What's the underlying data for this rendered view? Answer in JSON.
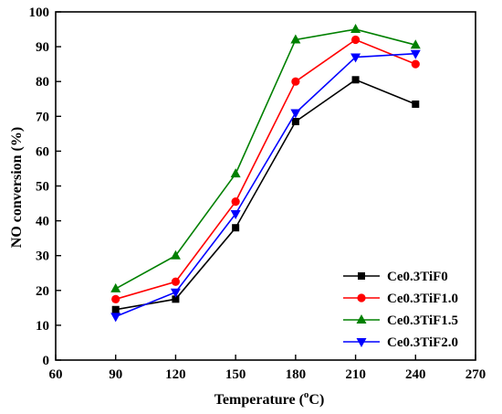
{
  "chart_data": {
    "type": "line",
    "xlabel": "Temperature (",
    "xlabel_unit": "o",
    "xlabel_suffix": "C)",
    "ylabel": "NO conversion (%)",
    "xlim": [
      60,
      270
    ],
    "ylim": [
      0,
      100
    ],
    "x_ticks": [
      "60",
      "90",
      "120",
      "150",
      "180",
      "210",
      "240",
      "270"
    ],
    "y_ticks": [
      "0",
      "10",
      "20",
      "30",
      "40",
      "50",
      "60",
      "70",
      "80",
      "90",
      "100"
    ],
    "x": [
      90,
      120,
      150,
      180,
      210,
      240
    ],
    "legend_position": "bottom-right",
    "grid": false,
    "series": [
      {
        "name": "Ce0.3TiF0",
        "marker": "square",
        "color": "#000000",
        "values": [
          14.5,
          17.5,
          38.0,
          68.5,
          80.5,
          73.5
        ]
      },
      {
        "name": "Ce0.3TiF1.0",
        "marker": "circle",
        "color": "#ff0000",
        "values": [
          17.5,
          22.5,
          45.5,
          80.0,
          92.0,
          85.0
        ]
      },
      {
        "name": "Ce0.3TiF1.5",
        "marker": "triangle-up",
        "color": "#008000",
        "values": [
          20.5,
          30.0,
          53.5,
          92.0,
          95.0,
          90.5
        ]
      },
      {
        "name": "Ce0.3TiF2.0",
        "marker": "triangle-down",
        "color": "#0000ff",
        "values": [
          12.5,
          19.5,
          42.0,
          71.0,
          87.0,
          88.0
        ]
      }
    ]
  }
}
